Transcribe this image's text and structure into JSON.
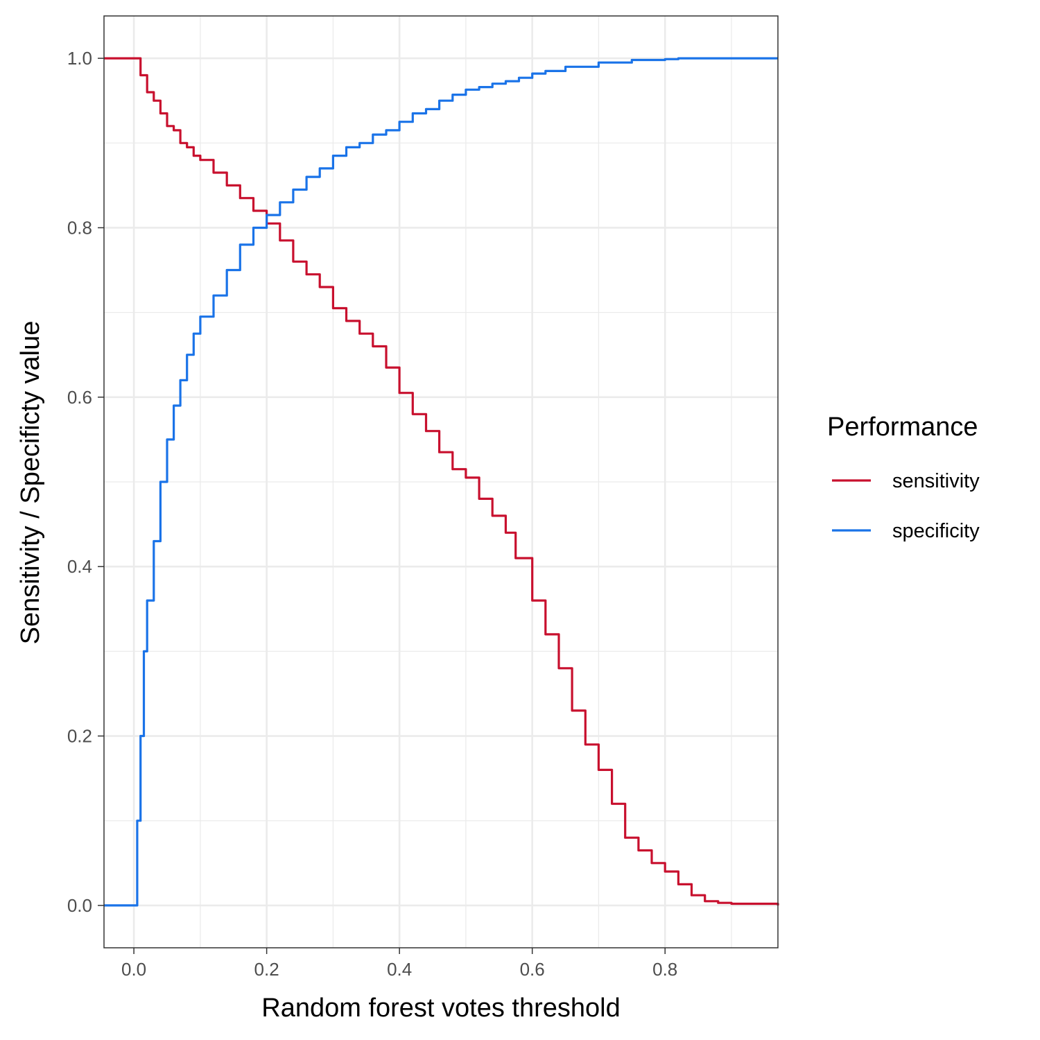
{
  "chart_data": {
    "type": "line",
    "title": "",
    "xlabel": "Random forest votes threshold",
    "ylabel": "Sensitivity / Specificty value",
    "xlim": [
      -0.045,
      0.97
    ],
    "ylim": [
      -0.05,
      1.05
    ],
    "x_ticks": [
      0.0,
      0.2,
      0.4,
      0.6,
      0.8
    ],
    "x_tick_labels": [
      "0.0",
      "0.2",
      "0.4",
      "0.6",
      "0.8"
    ],
    "y_ticks": [
      0.0,
      0.2,
      0.4,
      0.6,
      0.8,
      1.0
    ],
    "y_tick_labels": [
      "0.0",
      "0.2",
      "0.4",
      "0.6",
      "0.8",
      "1.0"
    ],
    "grid": true,
    "legend": {
      "title": "Performance",
      "position": "right",
      "entries": [
        "sensitivity",
        "specificity"
      ]
    },
    "series": [
      {
        "name": "sensitivity",
        "color": "#c8102e",
        "x": [
          -0.045,
          0.003,
          0.01,
          0.02,
          0.03,
          0.04,
          0.05,
          0.06,
          0.07,
          0.08,
          0.09,
          0.1,
          0.12,
          0.14,
          0.16,
          0.18,
          0.2,
          0.22,
          0.24,
          0.26,
          0.28,
          0.3,
          0.32,
          0.34,
          0.36,
          0.38,
          0.4,
          0.42,
          0.44,
          0.46,
          0.48,
          0.5,
          0.52,
          0.54,
          0.56,
          0.575,
          0.6,
          0.62,
          0.64,
          0.66,
          0.68,
          0.7,
          0.72,
          0.74,
          0.76,
          0.78,
          0.8,
          0.82,
          0.84,
          0.86,
          0.88,
          0.9,
          0.97
        ],
        "y": [
          1.0,
          1.0,
          0.98,
          0.96,
          0.95,
          0.935,
          0.92,
          0.915,
          0.9,
          0.895,
          0.885,
          0.88,
          0.865,
          0.85,
          0.835,
          0.82,
          0.805,
          0.785,
          0.76,
          0.745,
          0.73,
          0.705,
          0.69,
          0.675,
          0.66,
          0.635,
          0.605,
          0.58,
          0.56,
          0.535,
          0.515,
          0.505,
          0.48,
          0.46,
          0.44,
          0.41,
          0.36,
          0.32,
          0.28,
          0.23,
          0.19,
          0.16,
          0.12,
          0.08,
          0.065,
          0.05,
          0.04,
          0.025,
          0.012,
          0.005,
          0.003,
          0.002,
          0.0
        ]
      },
      {
        "name": "specificity",
        "color": "#1a73e8",
        "x": [
          -0.045,
          0.002,
          0.005,
          0.01,
          0.015,
          0.02,
          0.03,
          0.04,
          0.05,
          0.06,
          0.07,
          0.08,
          0.09,
          0.1,
          0.12,
          0.14,
          0.16,
          0.18,
          0.2,
          0.22,
          0.24,
          0.26,
          0.28,
          0.3,
          0.32,
          0.34,
          0.36,
          0.38,
          0.4,
          0.42,
          0.44,
          0.46,
          0.48,
          0.5,
          0.52,
          0.54,
          0.56,
          0.58,
          0.6,
          0.62,
          0.65,
          0.7,
          0.75,
          0.8,
          0.82,
          0.97
        ],
        "y": [
          0.0,
          0.0,
          0.1,
          0.2,
          0.3,
          0.36,
          0.43,
          0.5,
          0.55,
          0.59,
          0.62,
          0.65,
          0.675,
          0.695,
          0.72,
          0.75,
          0.78,
          0.8,
          0.815,
          0.83,
          0.845,
          0.86,
          0.87,
          0.885,
          0.895,
          0.9,
          0.91,
          0.915,
          0.925,
          0.935,
          0.94,
          0.95,
          0.957,
          0.963,
          0.966,
          0.97,
          0.973,
          0.977,
          0.982,
          0.985,
          0.99,
          0.995,
          0.998,
          0.999,
          1.0,
          1.0
        ]
      }
    ]
  }
}
